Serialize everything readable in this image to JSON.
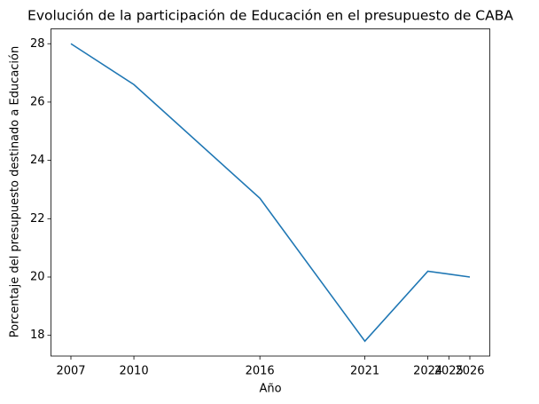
{
  "chart_data": {
    "type": "line",
    "title": "Evolución de la participación de Educación en el presupuesto de CABA",
    "x_label": "Año",
    "y_label": "Porcentaje del presupuesto destinado a Educación",
    "x": [
      2007,
      2010,
      2016,
      2021,
      2024,
      2026
    ],
    "series": [
      {
        "color": "#1f77b4",
        "values": [
          28.0,
          26.6,
          22.7,
          17.8,
          20.2,
          20.0
        ]
      }
    ],
    "xlim": [
      2006.05,
      2026.95
    ],
    "xticks": [
      2007,
      2010,
      2016,
      2021,
      2024,
      2025,
      2026
    ],
    "ylim": [
      17.29,
      28.51
    ],
    "yticks": [
      18,
      20,
      22,
      24,
      26,
      28
    ],
    "grid": false
  }
}
